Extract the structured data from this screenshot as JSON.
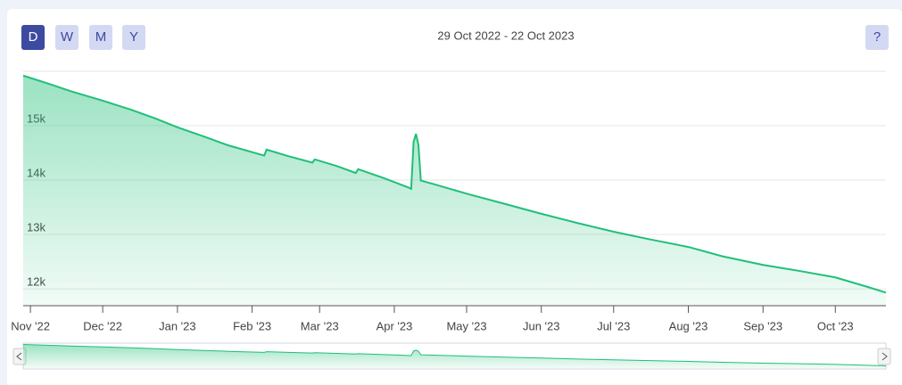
{
  "chart_data": {
    "type": "area",
    "subtitle": "29 Oct 2022 - 22 Oct 2023",
    "range_buttons": [
      "D",
      "W",
      "M",
      "Y"
    ],
    "help_button": "?",
    "color": "#20bf78",
    "grid": true,
    "x": [
      0,
      10,
      20,
      33,
      45,
      55,
      64,
      75,
      85,
      100,
      101,
      110,
      120,
      121,
      130,
      138,
      139,
      150,
      160,
      161,
      162,
      163,
      164,
      165,
      170,
      184,
      200,
      215,
      230,
      245,
      260,
      276,
      290,
      307,
      322,
      337,
      350,
      358
    ],
    "values": [
      15920,
      15780,
      15630,
      15460,
      15290,
      15130,
      14970,
      14800,
      14640,
      14450,
      14560,
      14440,
      14320,
      14380,
      14260,
      14130,
      14200,
      14030,
      13860,
      13840,
      14700,
      14850,
      14650,
      13990,
      13930,
      13750,
      13560,
      13380,
      13210,
      13050,
      12910,
      12770,
      12600,
      12440,
      12330,
      12210,
      12040,
      11930
    ],
    "xlim": [
      0,
      358
    ],
    "xticks": [
      {
        "value": 3,
        "label": "Nov '22"
      },
      {
        "value": 33,
        "label": "Dec '22"
      },
      {
        "value": 64,
        "label": "Jan '23"
      },
      {
        "value": 95,
        "label": "Feb '23"
      },
      {
        "value": 123,
        "label": "Mar '23"
      },
      {
        "value": 154,
        "label": "Apr '23"
      },
      {
        "value": 184,
        "label": "May '23"
      },
      {
        "value": 215,
        "label": "Jun '23"
      },
      {
        "value": 245,
        "label": "Jul '23"
      },
      {
        "value": 276,
        "label": "Aug '23"
      },
      {
        "value": 307,
        "label": "Sep '23"
      },
      {
        "value": 337,
        "label": "Oct '23"
      }
    ],
    "ylim": [
      11690,
      16000
    ],
    "yticks": [
      {
        "value": 12000,
        "label": "12k"
      },
      {
        "value": 13000,
        "label": "13k"
      },
      {
        "value": 14000,
        "label": "14k"
      },
      {
        "value": 15000,
        "label": "15k"
      }
    ]
  }
}
